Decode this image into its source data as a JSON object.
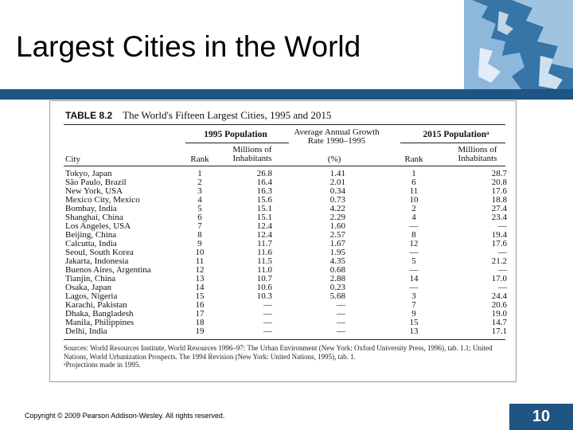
{
  "slide": {
    "title": "Largest Cities in the World",
    "copyright": "Copyright © 2009 Pearson Addison-Wesley. All rights reserved.",
    "page_number": "10",
    "accent_color": "#1f5582"
  },
  "table": {
    "label": "TABLE 8.2",
    "caption": "The World's Fifteen Largest Cities, 1995 and 2015",
    "group_1995": "1995 Population",
    "group_2015": "2015 Populationᵃ",
    "group_growth": "Average Annual Growth Rate 1990–1995",
    "headers": {
      "city": "City",
      "rank_1995": "Rank",
      "pop_1995": "Millions of\nInhabitants",
      "growth": "(%)",
      "rank_2015": "Rank",
      "pop_2015": "Millions of\nInhabitants"
    },
    "rows": [
      {
        "city": "Tokyo, Japan",
        "rank_1995": "1",
        "pop_1995": "26.8",
        "growth": "1.41",
        "rank_2015": "1",
        "pop_2015": "28.7"
      },
      {
        "city": "São Paulo, Brazil",
        "rank_1995": "2",
        "pop_1995": "16.4",
        "growth": "2.01",
        "rank_2015": "6",
        "pop_2015": "20.8"
      },
      {
        "city": "New York, USA",
        "rank_1995": "3",
        "pop_1995": "16.3",
        "growth": "0.34",
        "rank_2015": "11",
        "pop_2015": "17.6"
      },
      {
        "city": "Mexico City, Mexico",
        "rank_1995": "4",
        "pop_1995": "15.6",
        "growth": "0.73",
        "rank_2015": "10",
        "pop_2015": "18.8"
      },
      {
        "city": "Bombay, India",
        "rank_1995": "5",
        "pop_1995": "15.1",
        "growth": "4.22",
        "rank_2015": "2",
        "pop_2015": "27.4"
      },
      {
        "city": "Shanghai, China",
        "rank_1995": "6",
        "pop_1995": "15.1",
        "growth": "2.29",
        "rank_2015": "4",
        "pop_2015": "23.4"
      },
      {
        "city": "Los Angeles, USA",
        "rank_1995": "7",
        "pop_1995": "12.4",
        "growth": "1.60",
        "rank_2015": "—",
        "pop_2015": "—"
      },
      {
        "city": "Beijing, China",
        "rank_1995": "8",
        "pop_1995": "12.4",
        "growth": "2.57",
        "rank_2015": "8",
        "pop_2015": "19.4"
      },
      {
        "city": "Calcutta, India",
        "rank_1995": "9",
        "pop_1995": "11.7",
        "growth": "1.67",
        "rank_2015": "12",
        "pop_2015": "17.6"
      },
      {
        "city": "Seoul, South Korea",
        "rank_1995": "10",
        "pop_1995": "11.6",
        "growth": "1.95",
        "rank_2015": "—",
        "pop_2015": "—"
      },
      {
        "city": "Jakarta, Indonesia",
        "rank_1995": "11",
        "pop_1995": "11.5",
        "growth": "4.35",
        "rank_2015": "5",
        "pop_2015": "21.2"
      },
      {
        "city": "Buenos Aires, Argentina",
        "rank_1995": "12",
        "pop_1995": "11.0",
        "growth": "0.68",
        "rank_2015": "—",
        "pop_2015": "—"
      },
      {
        "city": "Tianjin, China",
        "rank_1995": "13",
        "pop_1995": "10.7",
        "growth": "2.88",
        "rank_2015": "14",
        "pop_2015": "17.0"
      },
      {
        "city": "Osaka, Japan",
        "rank_1995": "14",
        "pop_1995": "10.6",
        "growth": "0.23",
        "rank_2015": "—",
        "pop_2015": "—"
      },
      {
        "city": "Lagos, Nigeria",
        "rank_1995": "15",
        "pop_1995": "10.3",
        "growth": "5.68",
        "rank_2015": "3",
        "pop_2015": "24.4"
      },
      {
        "city": "Karachi, Pakistan",
        "rank_1995": "16",
        "pop_1995": "—",
        "growth": "—",
        "rank_2015": "7",
        "pop_2015": "20.6"
      },
      {
        "city": "Dhaka, Bangladesh",
        "rank_1995": "17",
        "pop_1995": "—",
        "growth": "—",
        "rank_2015": "9",
        "pop_2015": "19.0"
      },
      {
        "city": "Manila, Philippines",
        "rank_1995": "18",
        "pop_1995": "—",
        "growth": "—",
        "rank_2015": "15",
        "pop_2015": "14.7"
      },
      {
        "city": "Delhi, India",
        "rank_1995": "19",
        "pop_1995": "—",
        "growth": "—",
        "rank_2015": "13",
        "pop_2015": "17.1"
      }
    ],
    "sources": "Sources: World Resources Institute, World Resources 1996–97: The Urban Environment (New York: Oxford University Press, 1996), tab. 1.1; United Nations, World Urbanization Prospects. The 1994 Revision (New York: United Nations, 1995), tab. 1.",
    "footnote": "ᵃProjections made in 1995."
  }
}
